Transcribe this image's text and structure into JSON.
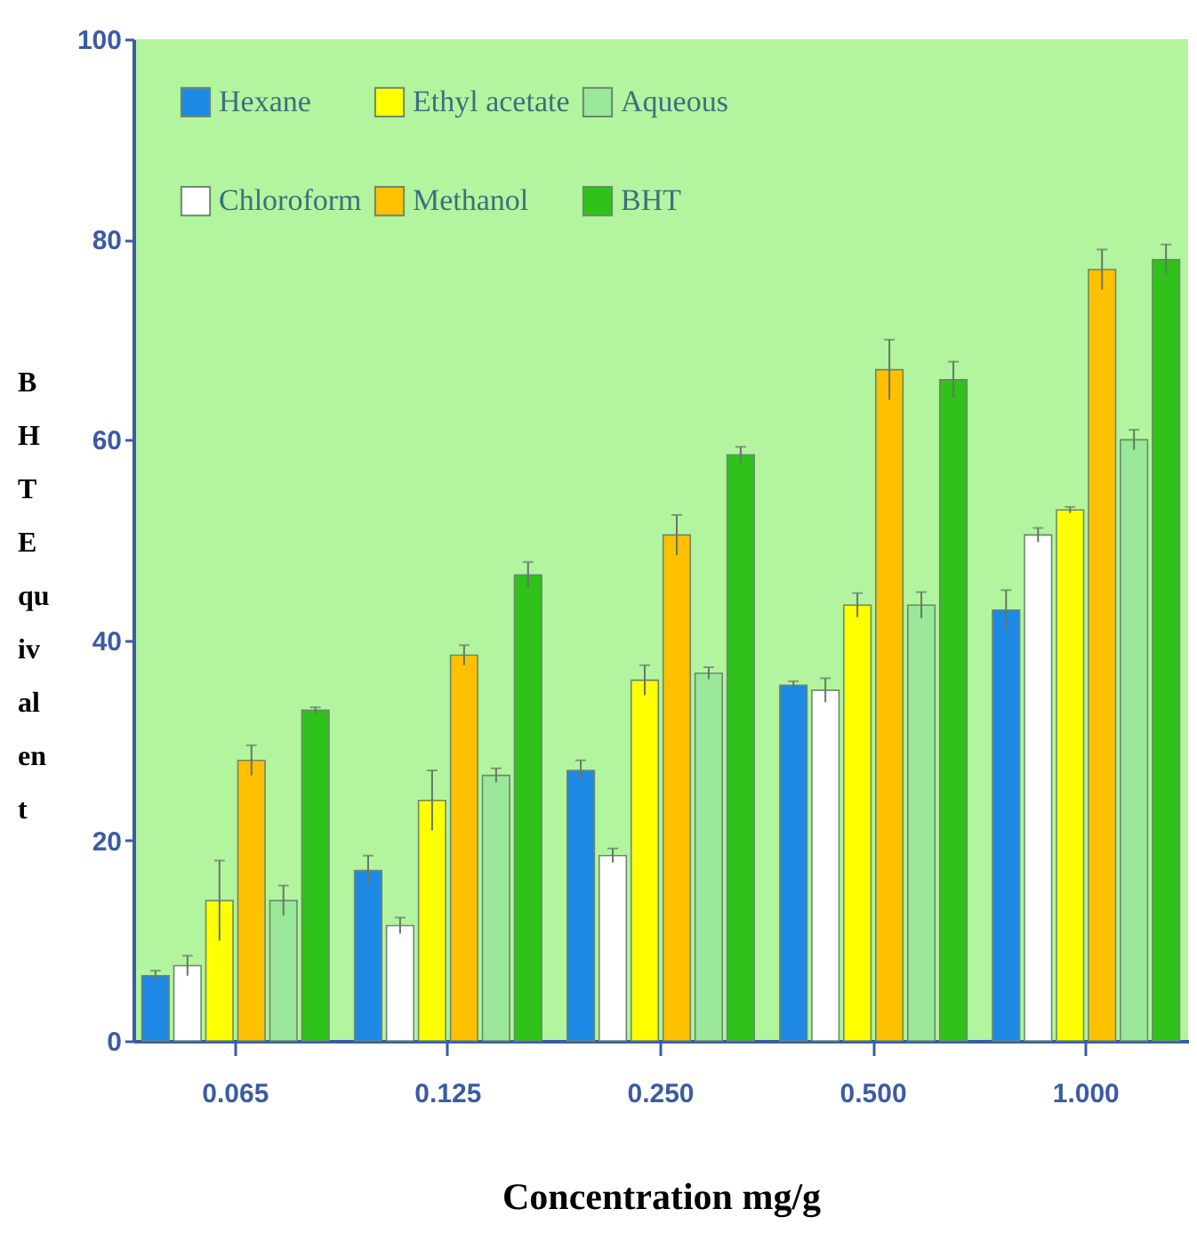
{
  "chart_data": {
    "type": "bar",
    "xlabel": "Concentration mg/g",
    "ylabel": "BHT Equivalent",
    "categories": [
      "0.065",
      "0.125",
      "0.250",
      "0.500",
      "1.000"
    ],
    "series": [
      {
        "name": "Hexane",
        "color": "#1e88e5",
        "values": [
          6.5,
          17,
          27,
          35.5,
          43
        ],
        "errors": [
          0.5,
          1.5,
          1,
          0.4,
          2
        ]
      },
      {
        "name": "Chloroform",
        "color": "#ffffff",
        "values": [
          7.5,
          11.5,
          18.5,
          35,
          50.5
        ],
        "errors": [
          1,
          0.8,
          0.7,
          1.2,
          0.7
        ]
      },
      {
        "name": "Ethyl acetate",
        "color": "#ffff00",
        "values": [
          14,
          24,
          36,
          43.5,
          53
        ],
        "errors": [
          4,
          3,
          1.5,
          1.2,
          0.3
        ]
      },
      {
        "name": "Methanol",
        "color": "#ffc000",
        "values": [
          28,
          38.5,
          50.5,
          67,
          77
        ],
        "errors": [
          1.5,
          1,
          2,
          3,
          2
        ]
      },
      {
        "name": "Aqueous",
        "color": "#9be89a",
        "values": [
          14,
          26.5,
          36.7,
          43.5,
          60
        ],
        "errors": [
          1.5,
          0.7,
          0.6,
          1.3,
          1
        ]
      },
      {
        "name": "BHT",
        "color": "#2ec21a",
        "values": [
          33,
          46.5,
          58.5,
          66,
          78
        ],
        "errors": [
          0.3,
          1.3,
          0.8,
          1.8,
          1.5
        ]
      }
    ],
    "ylim": [
      0,
      100
    ],
    "yticks": [
      0,
      20,
      40,
      60,
      80,
      100
    ],
    "grid": false,
    "legend": "top left"
  }
}
